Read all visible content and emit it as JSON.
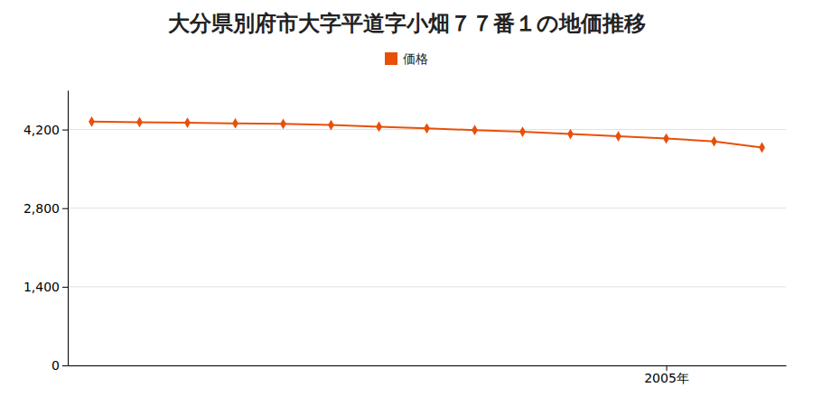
{
  "chart_data": {
    "type": "line",
    "title": "大分県別府市大字平道字小畑７７番１の地価推移",
    "x": [
      1993,
      1994,
      1995,
      1996,
      1997,
      1998,
      1999,
      2000,
      2001,
      2002,
      2003,
      2004,
      2005,
      2006,
      2007
    ],
    "series": [
      {
        "name": "価格",
        "color": "#e8500a",
        "marker": "diamond",
        "values": [
          4340,
          4330,
          4320,
          4310,
          4300,
          4280,
          4250,
          4220,
          4190,
          4160,
          4120,
          4080,
          4040,
          3990,
          3880
        ]
      }
    ],
    "xlim": [
      1992.5,
      2007.5
    ],
    "xticks": [
      {
        "value": 2005,
        "label": "2005年"
      }
    ],
    "ylim": [
      0,
      4900
    ],
    "yticks": [
      0,
      {
        "value": 1400,
        "label": "1,400"
      },
      {
        "value": 2800,
        "label": "2,800"
      },
      {
        "value": 4200,
        "label": "4,200"
      }
    ],
    "grid": true,
    "legend": "top"
  }
}
